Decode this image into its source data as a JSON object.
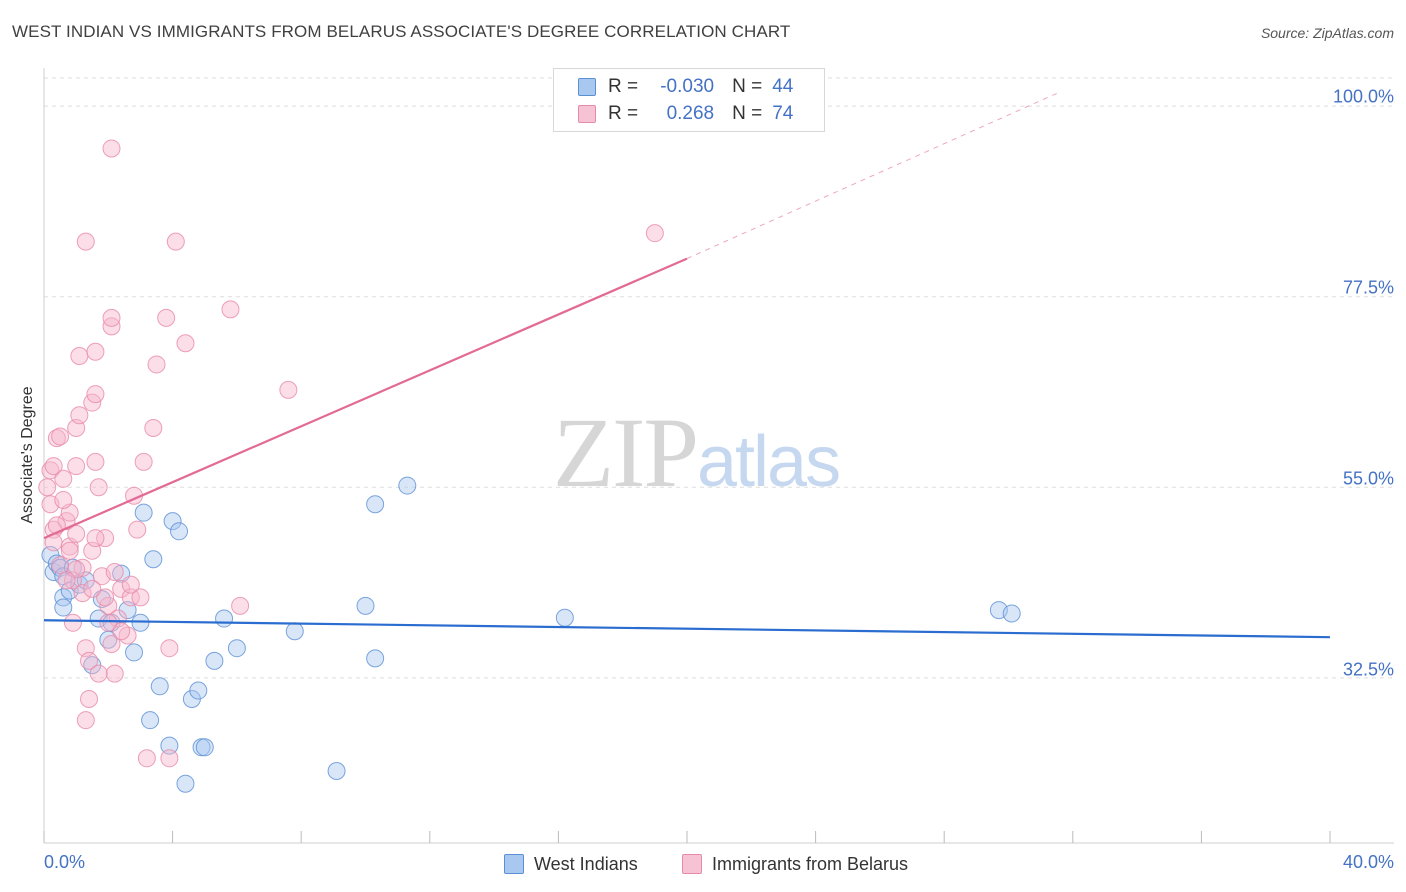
{
  "header": {
    "title": "WEST INDIAN VS IMMIGRANTS FROM BELARUS ASSOCIATE'S DEGREE CORRELATION CHART",
    "source": "Source: ZipAtlas.com"
  },
  "watermark": {
    "zip": "ZIP",
    "atlas": "atlas"
  },
  "stats": {
    "r_label": "R =",
    "n_label": "N =",
    "rows": [
      {
        "r": "-0.030",
        "n": "44"
      },
      {
        "r": "0.268",
        "n": "74"
      }
    ]
  },
  "colors": {
    "blue_fill": "#a9c8f0",
    "blue_stroke": "#5b8fd4",
    "blue_line": "#2a6ccf",
    "pink_fill": "#f6b6cb",
    "pink_stroke": "#e889a8",
    "pink_line": "#e26a94",
    "tick_text": "#4472c4",
    "grid": "#dddddd"
  },
  "chart_data": {
    "type": "scatter",
    "title": "WEST INDIAN VS IMMIGRANTS FROM BELARUS ASSOCIATE'S DEGREE CORRELATION CHART",
    "xlabel": "",
    "ylabel": "Associate's Degree",
    "xlim": [
      0,
      40
    ],
    "ylim": [
      13.0,
      104.5
    ],
    "x_tick_labels": [
      "0.0%",
      "40.0%"
    ],
    "y_ticks": [
      32.5,
      55.0,
      77.5,
      100.0
    ],
    "y_tick_labels": [
      "32.5%",
      "55.0%",
      "77.5%",
      "100.0%"
    ],
    "legend_position": "bottom",
    "series": [
      {
        "name": "West Indians",
        "color": "blue",
        "trend": {
          "x": [
            0,
            40
          ],
          "y": [
            39.3,
            37.3
          ]
        },
        "points": [
          [
            0.2,
            47.0
          ],
          [
            0.3,
            45.0
          ],
          [
            0.4,
            46.0
          ],
          [
            0.5,
            45.5
          ],
          [
            0.6,
            44.5
          ],
          [
            0.6,
            42.0
          ],
          [
            0.8,
            42.8
          ],
          [
            0.9,
            45.5
          ],
          [
            1.1,
            43.5
          ],
          [
            1.3,
            44.0
          ],
          [
            1.5,
            34.0
          ],
          [
            1.7,
            39.5
          ],
          [
            2.0,
            37.0
          ],
          [
            2.1,
            39.0
          ],
          [
            2.4,
            44.8
          ],
          [
            2.6,
            40.5
          ],
          [
            2.8,
            35.5
          ],
          [
            3.0,
            39.0
          ],
          [
            3.1,
            52.0
          ],
          [
            3.3,
            27.5
          ],
          [
            3.4,
            46.5
          ],
          [
            3.6,
            31.5
          ],
          [
            3.9,
            24.5
          ],
          [
            4.0,
            51.0
          ],
          [
            4.2,
            49.8
          ],
          [
            4.4,
            20.0
          ],
          [
            4.6,
            30.0
          ],
          [
            4.8,
            31.0
          ],
          [
            4.9,
            24.3
          ],
          [
            5.0,
            24.3
          ],
          [
            5.3,
            34.5
          ],
          [
            5.6,
            39.5
          ],
          [
            6.0,
            36.0
          ],
          [
            7.8,
            38.0
          ],
          [
            9.1,
            21.5
          ],
          [
            10.0,
            41.0
          ],
          [
            10.3,
            53.0
          ],
          [
            10.3,
            34.8
          ],
          [
            11.3,
            55.2
          ],
          [
            16.2,
            39.6
          ],
          [
            29.7,
            40.5
          ],
          [
            30.1,
            40.1
          ],
          [
            0.6,
            40.8
          ],
          [
            1.8,
            41.8
          ]
        ]
      },
      {
        "name": "Immigrants from Belarus",
        "color": "pink",
        "trend": {
          "x": [
            0,
            20
          ],
          "y": [
            49.0,
            82.0
          ]
        },
        "trend_ext": {
          "x": [
            20,
            31.5
          ],
          "y": [
            82.0,
            101.5
          ]
        },
        "points": [
          [
            0.1,
            55.0
          ],
          [
            0.2,
            57.0
          ],
          [
            0.2,
            53.0
          ],
          [
            0.3,
            50.0
          ],
          [
            0.3,
            48.5
          ],
          [
            0.4,
            60.8
          ],
          [
            0.5,
            61.0
          ],
          [
            0.6,
            56.0
          ],
          [
            0.7,
            51.0
          ],
          [
            0.8,
            52.0
          ],
          [
            0.8,
            48.0
          ],
          [
            0.9,
            44.0
          ],
          [
            1.0,
            57.5
          ],
          [
            1.0,
            62.0
          ],
          [
            1.1,
            63.5
          ],
          [
            1.2,
            45.5
          ],
          [
            1.3,
            36.0
          ],
          [
            1.4,
            34.5
          ],
          [
            1.5,
            47.5
          ],
          [
            1.6,
            58.0
          ],
          [
            1.7,
            55.0
          ],
          [
            1.8,
            44.5
          ],
          [
            1.9,
            49.0
          ],
          [
            2.0,
            41.0
          ],
          [
            2.1,
            36.5
          ],
          [
            2.2,
            45.0
          ],
          [
            2.3,
            39.5
          ],
          [
            2.4,
            43.0
          ],
          [
            2.6,
            37.5
          ],
          [
            2.7,
            42.0
          ],
          [
            1.1,
            70.5
          ],
          [
            1.6,
            71.0
          ],
          [
            1.5,
            65.0
          ],
          [
            1.6,
            66.0
          ],
          [
            2.1,
            74.0
          ],
          [
            2.1,
            75.0
          ],
          [
            2.1,
            95.0
          ],
          [
            1.3,
            84.0
          ],
          [
            4.1,
            84.0
          ],
          [
            3.8,
            75.0
          ],
          [
            4.4,
            72.0
          ],
          [
            3.5,
            69.5
          ],
          [
            3.4,
            62.0
          ],
          [
            3.1,
            58.0
          ],
          [
            2.8,
            54.0
          ],
          [
            2.9,
            50.0
          ],
          [
            5.8,
            76.0
          ],
          [
            7.6,
            66.5
          ],
          [
            6.1,
            41.0
          ],
          [
            3.0,
            42.0
          ],
          [
            3.9,
            36.0
          ],
          [
            3.2,
            23.0
          ],
          [
            3.9,
            23.0
          ],
          [
            2.2,
            33.0
          ],
          [
            1.4,
            30.0
          ],
          [
            1.3,
            27.5
          ],
          [
            0.4,
            50.5
          ],
          [
            0.6,
            53.5
          ],
          [
            0.9,
            39.0
          ],
          [
            1.7,
            33.0
          ],
          [
            0.5,
            45.8
          ],
          [
            1.0,
            45.3
          ],
          [
            19.0,
            85.0
          ],
          [
            1.9,
            42.0
          ],
          [
            2.4,
            38.0
          ],
          [
            1.2,
            42.5
          ],
          [
            0.7,
            44.0
          ],
          [
            0.3,
            57.5
          ],
          [
            2.0,
            39.0
          ],
          [
            1.6,
            49.0
          ],
          [
            2.7,
            43.5
          ],
          [
            0.8,
            47.5
          ],
          [
            1.5,
            43.0
          ],
          [
            1.0,
            49.5
          ]
        ]
      }
    ]
  }
}
